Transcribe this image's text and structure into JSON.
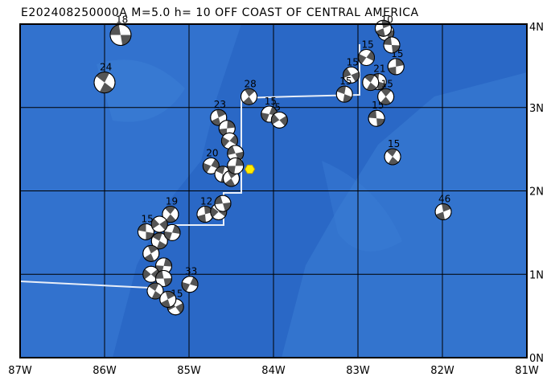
{
  "title": "E202408250000A M=5.0 h= 10 OFF COAST OF CENTRAL AMERICA",
  "map": {
    "xlim": [
      -87,
      -81
    ],
    "ylim": [
      0,
      4
    ],
    "xticks": [
      {
        "value": -87,
        "label": "87W"
      },
      {
        "value": -86,
        "label": "86W"
      },
      {
        "value": -85,
        "label": "85W"
      },
      {
        "value": -84,
        "label": "84W"
      },
      {
        "value": -83,
        "label": "83W"
      },
      {
        "value": -82,
        "label": "82W"
      },
      {
        "value": -81,
        "label": "81W"
      }
    ],
    "yticks": [
      {
        "value": 0,
        "label": "0N"
      },
      {
        "value": 1,
        "label": "1N"
      },
      {
        "value": 2,
        "label": "2N"
      },
      {
        "value": 3,
        "label": "3N"
      },
      {
        "value": 4,
        "label": "4N"
      }
    ],
    "main_event": {
      "lon": -84.28,
      "lat": 2.26
    },
    "events": [
      {
        "lon": -85.81,
        "lat": 3.87,
        "label": "18"
      },
      {
        "lon": -86.0,
        "lat": 3.3,
        "label": "24"
      },
      {
        "lon": -84.65,
        "lat": 2.88,
        "label": "23"
      },
      {
        "lon": -84.05,
        "lat": 2.92,
        "label": "15"
      },
      {
        "lon": -83.93,
        "lat": 2.85,
        "label": "5"
      },
      {
        "lon": -82.78,
        "lat": 2.87,
        "label": "15"
      },
      {
        "lon": -82.59,
        "lat": 2.41,
        "label": "15"
      },
      {
        "lon": -81.99,
        "lat": 1.75,
        "label": "46"
      },
      {
        "lon": -84.99,
        "lat": 0.88,
        "label": "33"
      },
      {
        "lon": -85.16,
        "lat": 0.61,
        "label": "15"
      },
      {
        "lon": -85.51,
        "lat": 1.51,
        "label": "15"
      },
      {
        "lon": -85.22,
        "lat": 1.72,
        "label": "19"
      },
      {
        "lon": -84.81,
        "lat": 1.72,
        "label": "12"
      },
      {
        "lon": -84.74,
        "lat": 2.3,
        "label": "20"
      },
      {
        "lon": -83.08,
        "lat": 3.39,
        "label": "15"
      },
      {
        "lon": -82.76,
        "lat": 3.31,
        "label": "21"
      },
      {
        "lon": -82.67,
        "lat": 3.13,
        "label": "15"
      },
      {
        "lon": -82.55,
        "lat": 3.49,
        "label": "15"
      },
      {
        "lon": -82.9,
        "lat": 3.6,
        "label": "15"
      },
      {
        "lon": -82.67,
        "lat": 3.9,
        "label": "10"
      },
      {
        "lon": -83.16,
        "lat": 3.16,
        "label": "15"
      },
      {
        "lon": -84.29,
        "lat": 3.13,
        "label": "28"
      },
      {
        "lon": -84.55,
        "lat": 2.75
      },
      {
        "lon": -84.52,
        "lat": 2.6
      },
      {
        "lon": -84.45,
        "lat": 2.45
      },
      {
        "lon": -84.6,
        "lat": 2.2
      },
      {
        "lon": -84.5,
        "lat": 2.15
      },
      {
        "lon": -84.45,
        "lat": 2.3
      },
      {
        "lon": -84.65,
        "lat": 1.75
      },
      {
        "lon": -84.6,
        "lat": 1.85
      },
      {
        "lon": -85.35,
        "lat": 1.4
      },
      {
        "lon": -85.45,
        "lat": 1.25
      },
      {
        "lon": -85.3,
        "lat": 1.1
      },
      {
        "lon": -85.45,
        "lat": 1.0
      },
      {
        "lon": -85.3,
        "lat": 0.95
      },
      {
        "lon": -85.4,
        "lat": 0.8
      },
      {
        "lon": -85.25,
        "lat": 0.7
      },
      {
        "lon": -85.2,
        "lat": 1.5
      },
      {
        "lon": -85.35,
        "lat": 1.6
      },
      {
        "lon": -82.6,
        "lat": 3.75
      },
      {
        "lon": -82.85,
        "lat": 3.3
      },
      {
        "lon": -82.7,
        "lat": 3.95
      }
    ]
  }
}
